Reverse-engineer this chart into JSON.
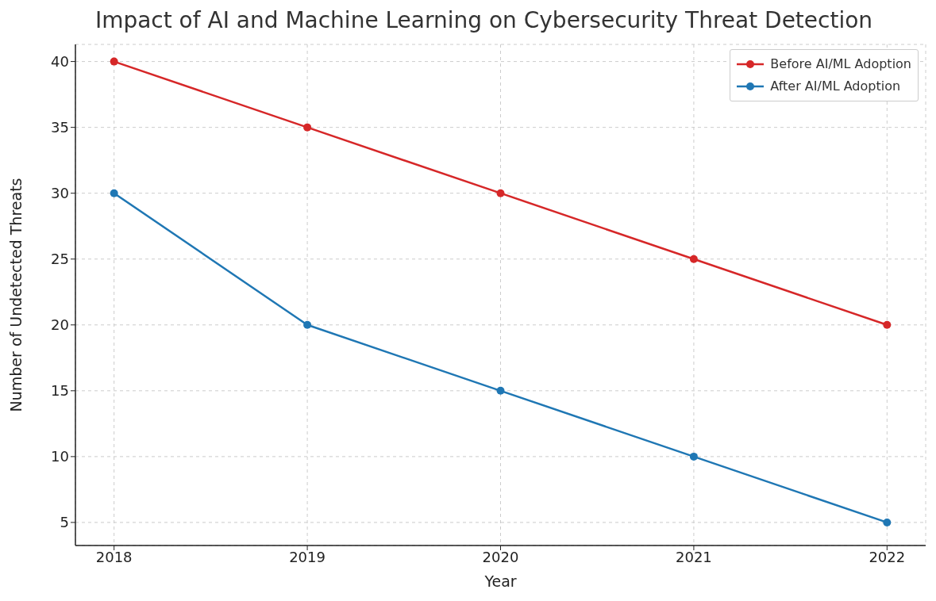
{
  "chart_data": {
    "type": "line",
    "title": "Impact of AI and Machine Learning on Cybersecurity Threat Detection",
    "xlabel": "Year",
    "ylabel": "Number of Undetected Threats",
    "x": [
      2018,
      2019,
      2020,
      2021,
      2022
    ],
    "series": [
      {
        "name": "Before AI/ML Adoption",
        "color": "#d62728",
        "values": [
          40,
          35,
          30,
          25,
          20
        ]
      },
      {
        "name": "After AI/ML Adoption",
        "color": "#1f77b4",
        "values": [
          30,
          20,
          15,
          10,
          5
        ]
      }
    ],
    "xlim": [
      2017.8,
      2022.2
    ],
    "xticks": [
      2018,
      2019,
      2020,
      2021,
      2022
    ],
    "ylim": [
      3.25,
      41.3
    ],
    "yticks": [
      5,
      10,
      15,
      20,
      25,
      30,
      35,
      40
    ],
    "grid": true,
    "legend": "top right",
    "marker": "circle",
    "line_style": "solid"
  }
}
